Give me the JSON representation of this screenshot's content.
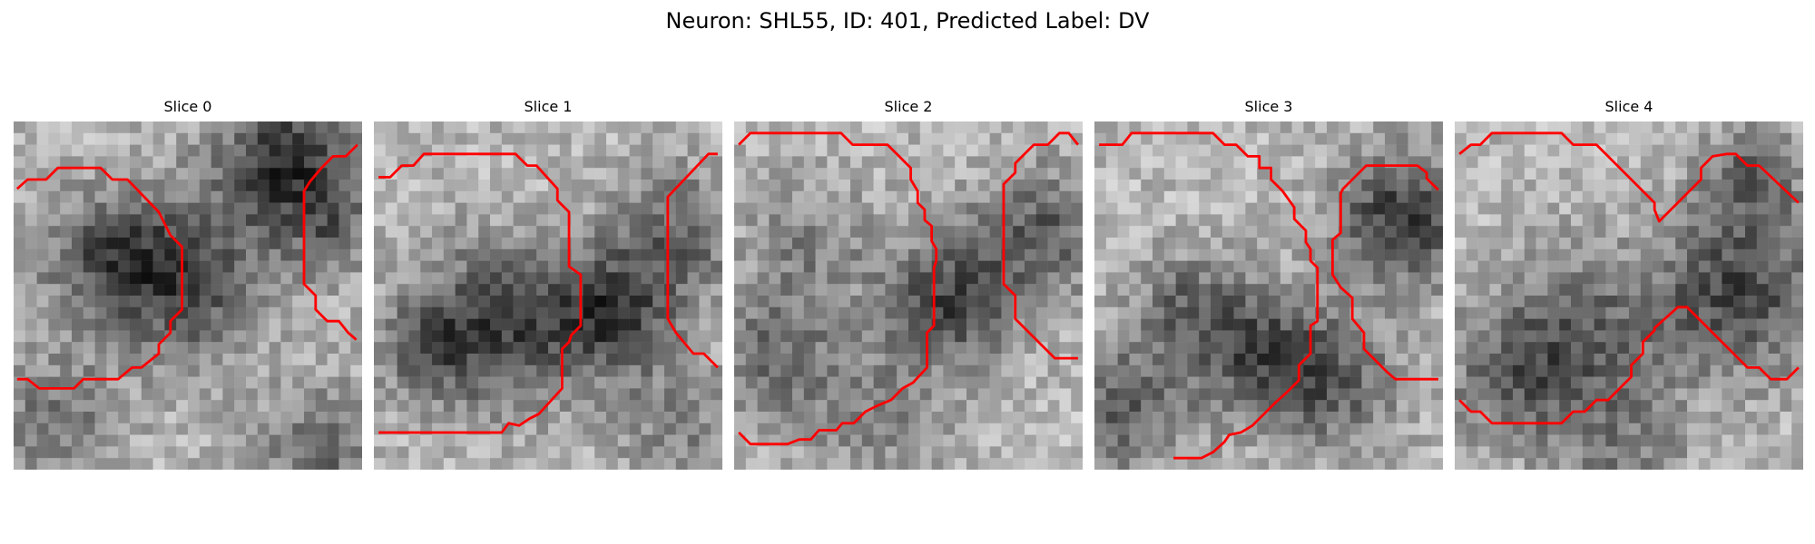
{
  "figure": {
    "title": "Neuron: SHL55, ID: 401, Predicted Label: DV"
  },
  "panels": [
    {
      "title": "Slice 0"
    },
    {
      "title": "Slice 1"
    },
    {
      "title": "Slice 2"
    },
    {
      "title": "Slice 3"
    },
    {
      "title": "Slice 4"
    }
  ],
  "colors": {
    "contour": "#ff0000",
    "background": "#ffffff"
  }
}
